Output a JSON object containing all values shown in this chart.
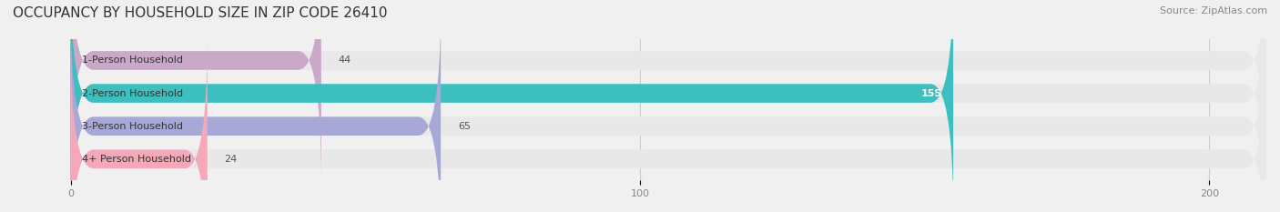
{
  "title": "OCCUPANCY BY HOUSEHOLD SIZE IN ZIP CODE 26410",
  "source": "Source: ZipAtlas.com",
  "categories": [
    "1-Person Household",
    "2-Person Household",
    "3-Person Household",
    "4+ Person Household"
  ],
  "values": [
    44,
    155,
    65,
    24
  ],
  "bar_colors": [
    "#c9a8c8",
    "#3dbfbf",
    "#a8a8d8",
    "#f4a8b8"
  ],
  "label_colors": [
    "#555555",
    "#ffffff",
    "#555555",
    "#555555"
  ],
  "xlim": [
    -10,
    210
  ],
  "xticks": [
    0,
    100,
    200
  ],
  "background_color": "#f0f0f0",
  "bar_background_color": "#e8e8e8",
  "title_fontsize": 11,
  "source_fontsize": 8,
  "label_fontsize": 8,
  "value_fontsize": 8,
  "bar_height": 0.55,
  "fig_width": 14.06,
  "fig_height": 2.33
}
